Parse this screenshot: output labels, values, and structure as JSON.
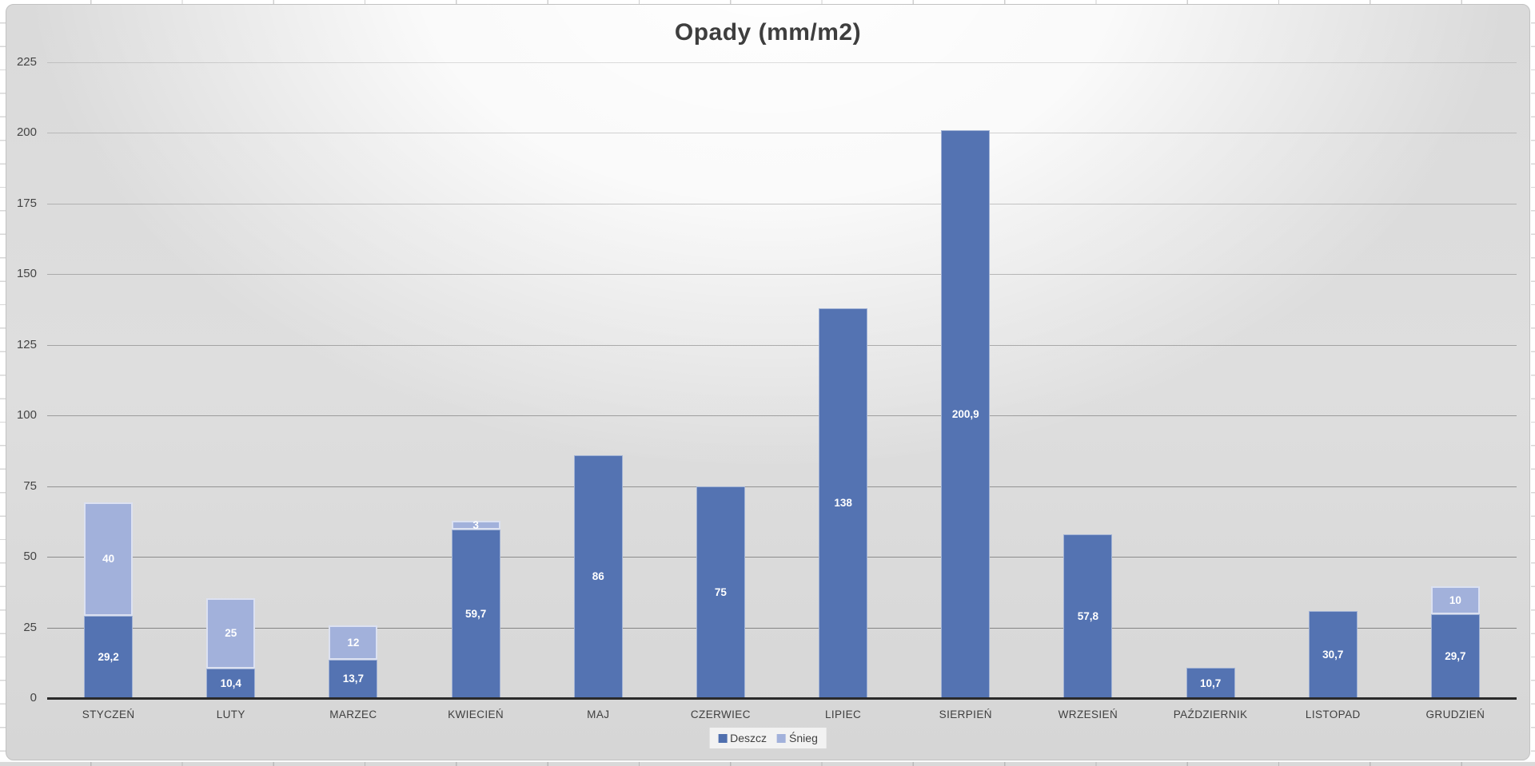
{
  "chart_title": "Opady (mm/m2)",
  "chart_data": {
    "type": "bar",
    "stacked": true,
    "title": "Opady (mm/m2)",
    "categories": [
      "STYCZEŃ",
      "LUTY",
      "MARZEC",
      "KWIECIEŃ",
      "MAJ",
      "CZERWIEC",
      "LIPIEC",
      "SIERPIEŃ",
      "WRZESIEŃ",
      "PAŹDZIERNIK",
      "LISTOPAD",
      "GRUDZIEŃ"
    ],
    "series": [
      {
        "name": "Deszcz",
        "color": "#5473b2",
        "values": [
          29.2,
          10.4,
          13.7,
          59.7,
          86,
          75,
          138,
          200.9,
          57.8,
          10.7,
          30.7,
          29.7
        ],
        "labels": [
          "29,2",
          "10,4",
          "13,7",
          "59,7",
          "86",
          "75",
          "138",
          "200,9",
          "57,8",
          "10,7",
          "30,7",
          "29,7"
        ]
      },
      {
        "name": "Śnieg",
        "color": "#a2b1db",
        "values": [
          40,
          25,
          12,
          3,
          0,
          0,
          0,
          0,
          0,
          0,
          0,
          10
        ],
        "labels": [
          "40",
          "25",
          "12",
          "3",
          "",
          "",
          "",
          "",
          "",
          "",
          "",
          "10"
        ]
      }
    ],
    "xlabel": "",
    "ylabel": "",
    "ylim": [
      0,
      225
    ],
    "ytick_step": 25,
    "yticks": [
      "0",
      "25",
      "50",
      "75",
      "100",
      "125",
      "150",
      "175",
      "200",
      "225"
    ],
    "grid": true,
    "legend_position": "bottom-center"
  },
  "legend": {
    "items": [
      {
        "label": "Deszcz",
        "color": "#4f6fae"
      },
      {
        "label": "Śnieg",
        "color": "#a2b1db"
      }
    ]
  },
  "colors": {
    "rain_fill": "#5473b2",
    "snow_fill": "#a2b1db",
    "axis_line": "#2a2a2a",
    "text": "#3f3f3f",
    "background_top": "#ffffff",
    "background_bottom": "#d6d6d6"
  }
}
